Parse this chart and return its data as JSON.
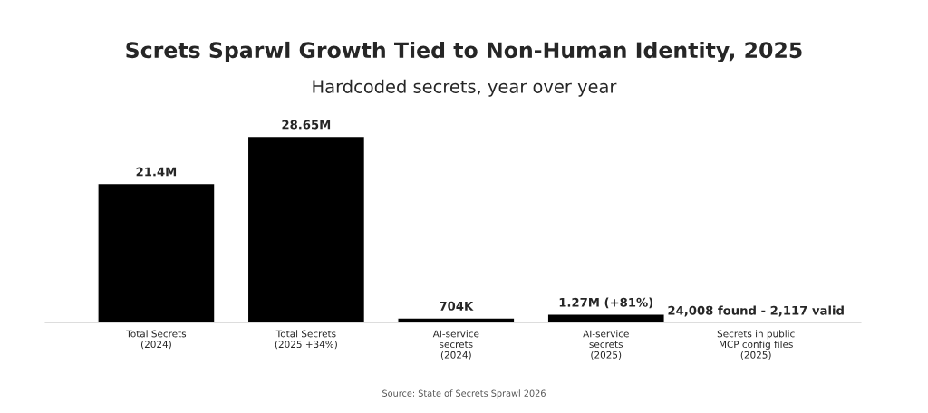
{
  "chart_data": {
    "type": "bar",
    "title": "Screts Sparwl Growth Tied to Non-Human Identity, 2025",
    "subtitle": "Hardcoded secrets, year over year",
    "categories": [
      "Total Secrets\n(2024)",
      "Total Secrets\n(2025 +34%)",
      "AI-service\nsecrets\n(2024)",
      "AI-service\nsecrets\n(2025)",
      "Secrets in public\nMCP config files\n(2025)"
    ],
    "values": [
      21400000,
      28650000,
      704000,
      1270000,
      24008
    ],
    "value_labels": [
      "21.4M",
      "28.65M",
      "704K",
      "1.27M (+81%)",
      "24,008 found - 2,117 valid"
    ],
    "color": "#000000",
    "grid": false,
    "legend": false,
    "annotations": [
      "Source: State of Secrets Sprawl 2026"
    ]
  }
}
